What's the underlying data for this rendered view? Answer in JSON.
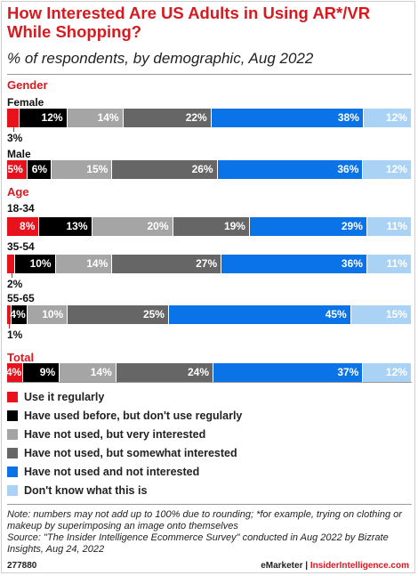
{
  "header": {
    "title": "How Interested Are US Adults in Using AR*/VR While Shopping?",
    "subtitle": "% of respondents, by demographic, Aug 2022"
  },
  "colors": {
    "accent": "#d71920",
    "segments": [
      "#e8121c",
      "#000000",
      "#a5a5a5",
      "#666666",
      "#0a73e8",
      "#a9d2f4"
    ],
    "segment_text": [
      "#ffffff",
      "#ffffff",
      "#ffffff",
      "#ffffff",
      "#ffffff",
      "#ffffff"
    ]
  },
  "chart_data": {
    "type": "bar",
    "orientation": "horizontal",
    "stacked": true,
    "xlim": [
      0,
      100
    ],
    "series_names": [
      "Use it regularly",
      "Have used before, but don't use regularly",
      "Have not used, but very interested",
      "Have not used, but somewhat interested",
      "Have not used and not interested",
      "Don't know what this is"
    ],
    "groups": [
      {
        "label": "Gender",
        "rows": [
          {
            "label": "Female",
            "values": [
              3,
              12,
              14,
              22,
              38,
              12
            ]
          },
          {
            "label": "Male",
            "values": [
              5,
              6,
              15,
              26,
              36,
              12
            ]
          }
        ]
      },
      {
        "label": "Age",
        "rows": [
          {
            "label": "18-34",
            "values": [
              8,
              13,
              20,
              19,
              29,
              11
            ]
          },
          {
            "label": "35-54",
            "values": [
              2,
              10,
              14,
              27,
              36,
              11
            ]
          },
          {
            "label": "55-65",
            "values": [
              1,
              4,
              10,
              25,
              45,
              15
            ]
          }
        ]
      },
      {
        "label": "Total",
        "rows": [
          {
            "label": "",
            "values": [
              4,
              9,
              14,
              24,
              37,
              12
            ]
          }
        ]
      }
    ],
    "legend_placement": "bottom"
  },
  "legend_entries": [
    "Use it regularly",
    "Have used before, but don't use regularly",
    "Have not used, but very interested",
    "Have not used, but somewhat interested",
    "Have not used and not interested",
    "Don't know what this is"
  ],
  "note": "Note: numbers may not add up to 100% due to rounding; *for example, trying on clothing or makeup by superimposing an image onto themselves",
  "source": "Source: \"The Insider Intelligence Ecommerce Survey\" conducted in Aug 2022 by Bizrate Insights, Aug 24, 2022",
  "footer": {
    "chart_id": "277880",
    "brand_emarketer": "eMarketer",
    "separator": "|",
    "brand_insider": "InsiderIntelligence.com"
  }
}
